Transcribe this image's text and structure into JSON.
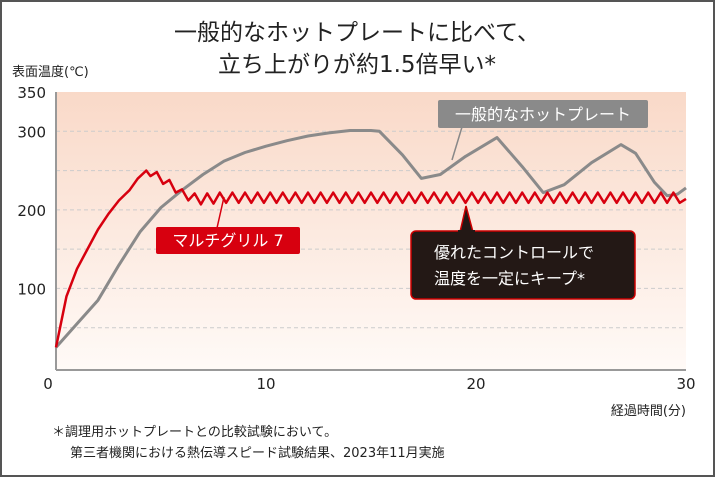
{
  "chart_data": {
    "type": "line",
    "title": "一般的なホットプレートに比べて、",
    "title_line2": "立ち上がりが約1.5倍早い*",
    "ylabel": "表面温度(℃)",
    "xlabel": "経過時間(分)",
    "xlim": [
      0,
      30
    ],
    "ylim": [
      0,
      350
    ],
    "xticks": [
      0,
      10,
      20,
      30
    ],
    "yticks": [
      100,
      200,
      300,
      350
    ],
    "grid": {
      "dashed_horizontal_every": 50
    },
    "background": {
      "top": "#f9d9c8",
      "bottom": "#fffaf7"
    },
    "series": [
      {
        "name": "一般的なホットプレート",
        "color": "#8a8a8a",
        "points": [
          [
            0,
            25
          ],
          [
            1,
            55
          ],
          [
            2,
            85
          ],
          [
            3,
            130
          ],
          [
            4,
            172
          ],
          [
            5,
            203
          ],
          [
            6,
            225
          ],
          [
            7,
            245
          ],
          [
            8,
            262
          ],
          [
            9,
            273
          ],
          [
            10,
            281
          ],
          [
            11,
            288
          ],
          [
            12,
            294
          ],
          [
            13,
            298
          ],
          [
            14,
            301
          ],
          [
            15,
            301
          ],
          [
            15.4,
            300
          ],
          [
            16.5,
            270
          ],
          [
            17.4,
            240
          ],
          [
            18.3,
            245
          ],
          [
            19.5,
            268
          ],
          [
            21,
            292
          ],
          [
            22.2,
            255
          ],
          [
            23.2,
            222
          ],
          [
            24.2,
            232
          ],
          [
            25.5,
            260
          ],
          [
            26.9,
            283
          ],
          [
            27.6,
            272
          ],
          [
            28.5,
            235
          ],
          [
            29.1,
            218
          ],
          [
            29.6,
            220
          ],
          [
            30,
            228
          ]
        ]
      },
      {
        "name": "マルチグリル 7",
        "color": "#d7000f",
        "points": [
          [
            0,
            25
          ],
          [
            0.5,
            90
          ],
          [
            1,
            125
          ],
          [
            1.5,
            150
          ],
          [
            2,
            175
          ],
          [
            2.5,
            195
          ],
          [
            3,
            212
          ],
          [
            3.5,
            225
          ],
          [
            3.9,
            240
          ],
          [
            4.3,
            250
          ],
          [
            4.5,
            243
          ],
          [
            4.8,
            248
          ],
          [
            5.1,
            233
          ],
          [
            5.4,
            238
          ],
          [
            5.7,
            222
          ],
          [
            6.0,
            226
          ],
          [
            6.3,
            212
          ],
          [
            6.6,
            221
          ],
          [
            6.9,
            207
          ],
          [
            7.2,
            221
          ],
          [
            7.5,
            208
          ],
          [
            7.8,
            222
          ],
          [
            8.1,
            209
          ],
          [
            8.4,
            222
          ],
          [
            8.7,
            209
          ],
          [
            9.0,
            222
          ],
          [
            9.3,
            209
          ],
          [
            9.6,
            222
          ],
          [
            9.9,
            209
          ],
          [
            10.2,
            222
          ],
          [
            10.5,
            209
          ],
          [
            10.8,
            222
          ],
          [
            11.1,
            209
          ],
          [
            11.4,
            222
          ],
          [
            11.7,
            209
          ],
          [
            12.0,
            222
          ],
          [
            12.3,
            209
          ],
          [
            12.6,
            222
          ],
          [
            12.9,
            209
          ],
          [
            13.2,
            222
          ],
          [
            13.5,
            209
          ],
          [
            13.8,
            222
          ],
          [
            14.1,
            209
          ],
          [
            14.4,
            222
          ],
          [
            14.7,
            209
          ],
          [
            15.0,
            222
          ],
          [
            15.3,
            209
          ],
          [
            15.6,
            222
          ],
          [
            15.9,
            209
          ],
          [
            16.2,
            222
          ],
          [
            16.5,
            209
          ],
          [
            16.8,
            222
          ],
          [
            17.1,
            209
          ],
          [
            17.4,
            222
          ],
          [
            17.7,
            209
          ],
          [
            18.0,
            222
          ],
          [
            18.3,
            209
          ],
          [
            18.6,
            222
          ],
          [
            18.9,
            209
          ],
          [
            19.2,
            222
          ],
          [
            19.5,
            209
          ],
          [
            19.8,
            222
          ],
          [
            20.1,
            209
          ],
          [
            20.4,
            222
          ],
          [
            20.7,
            209
          ],
          [
            21.0,
            222
          ],
          [
            21.3,
            209
          ],
          [
            21.6,
            222
          ],
          [
            21.9,
            209
          ],
          [
            22.2,
            222
          ],
          [
            22.5,
            209
          ],
          [
            22.8,
            222
          ],
          [
            23.1,
            209
          ],
          [
            23.4,
            222
          ],
          [
            23.7,
            209
          ],
          [
            24.0,
            222
          ],
          [
            24.3,
            209
          ],
          [
            24.6,
            222
          ],
          [
            24.9,
            209
          ],
          [
            25.2,
            222
          ],
          [
            25.5,
            209
          ],
          [
            25.8,
            222
          ],
          [
            26.1,
            209
          ],
          [
            26.4,
            222
          ],
          [
            26.7,
            209
          ],
          [
            27.0,
            222
          ],
          [
            27.3,
            209
          ],
          [
            27.6,
            222
          ],
          [
            27.9,
            209
          ],
          [
            28.2,
            222
          ],
          [
            28.5,
            209
          ],
          [
            28.8,
            222
          ],
          [
            29.1,
            209
          ],
          [
            29.4,
            222
          ],
          [
            29.7,
            209
          ],
          [
            30.0,
            214
          ]
        ]
      }
    ],
    "annotations": {
      "callout": [
        "優れたコントロールで",
        "温度を一定にキープ*"
      ]
    },
    "footnote": [
      "＊調理用ホットプレートとの比較試験において。",
      "第三者機関における熱伝導スピード試験結果、2023年11月実施"
    ]
  }
}
